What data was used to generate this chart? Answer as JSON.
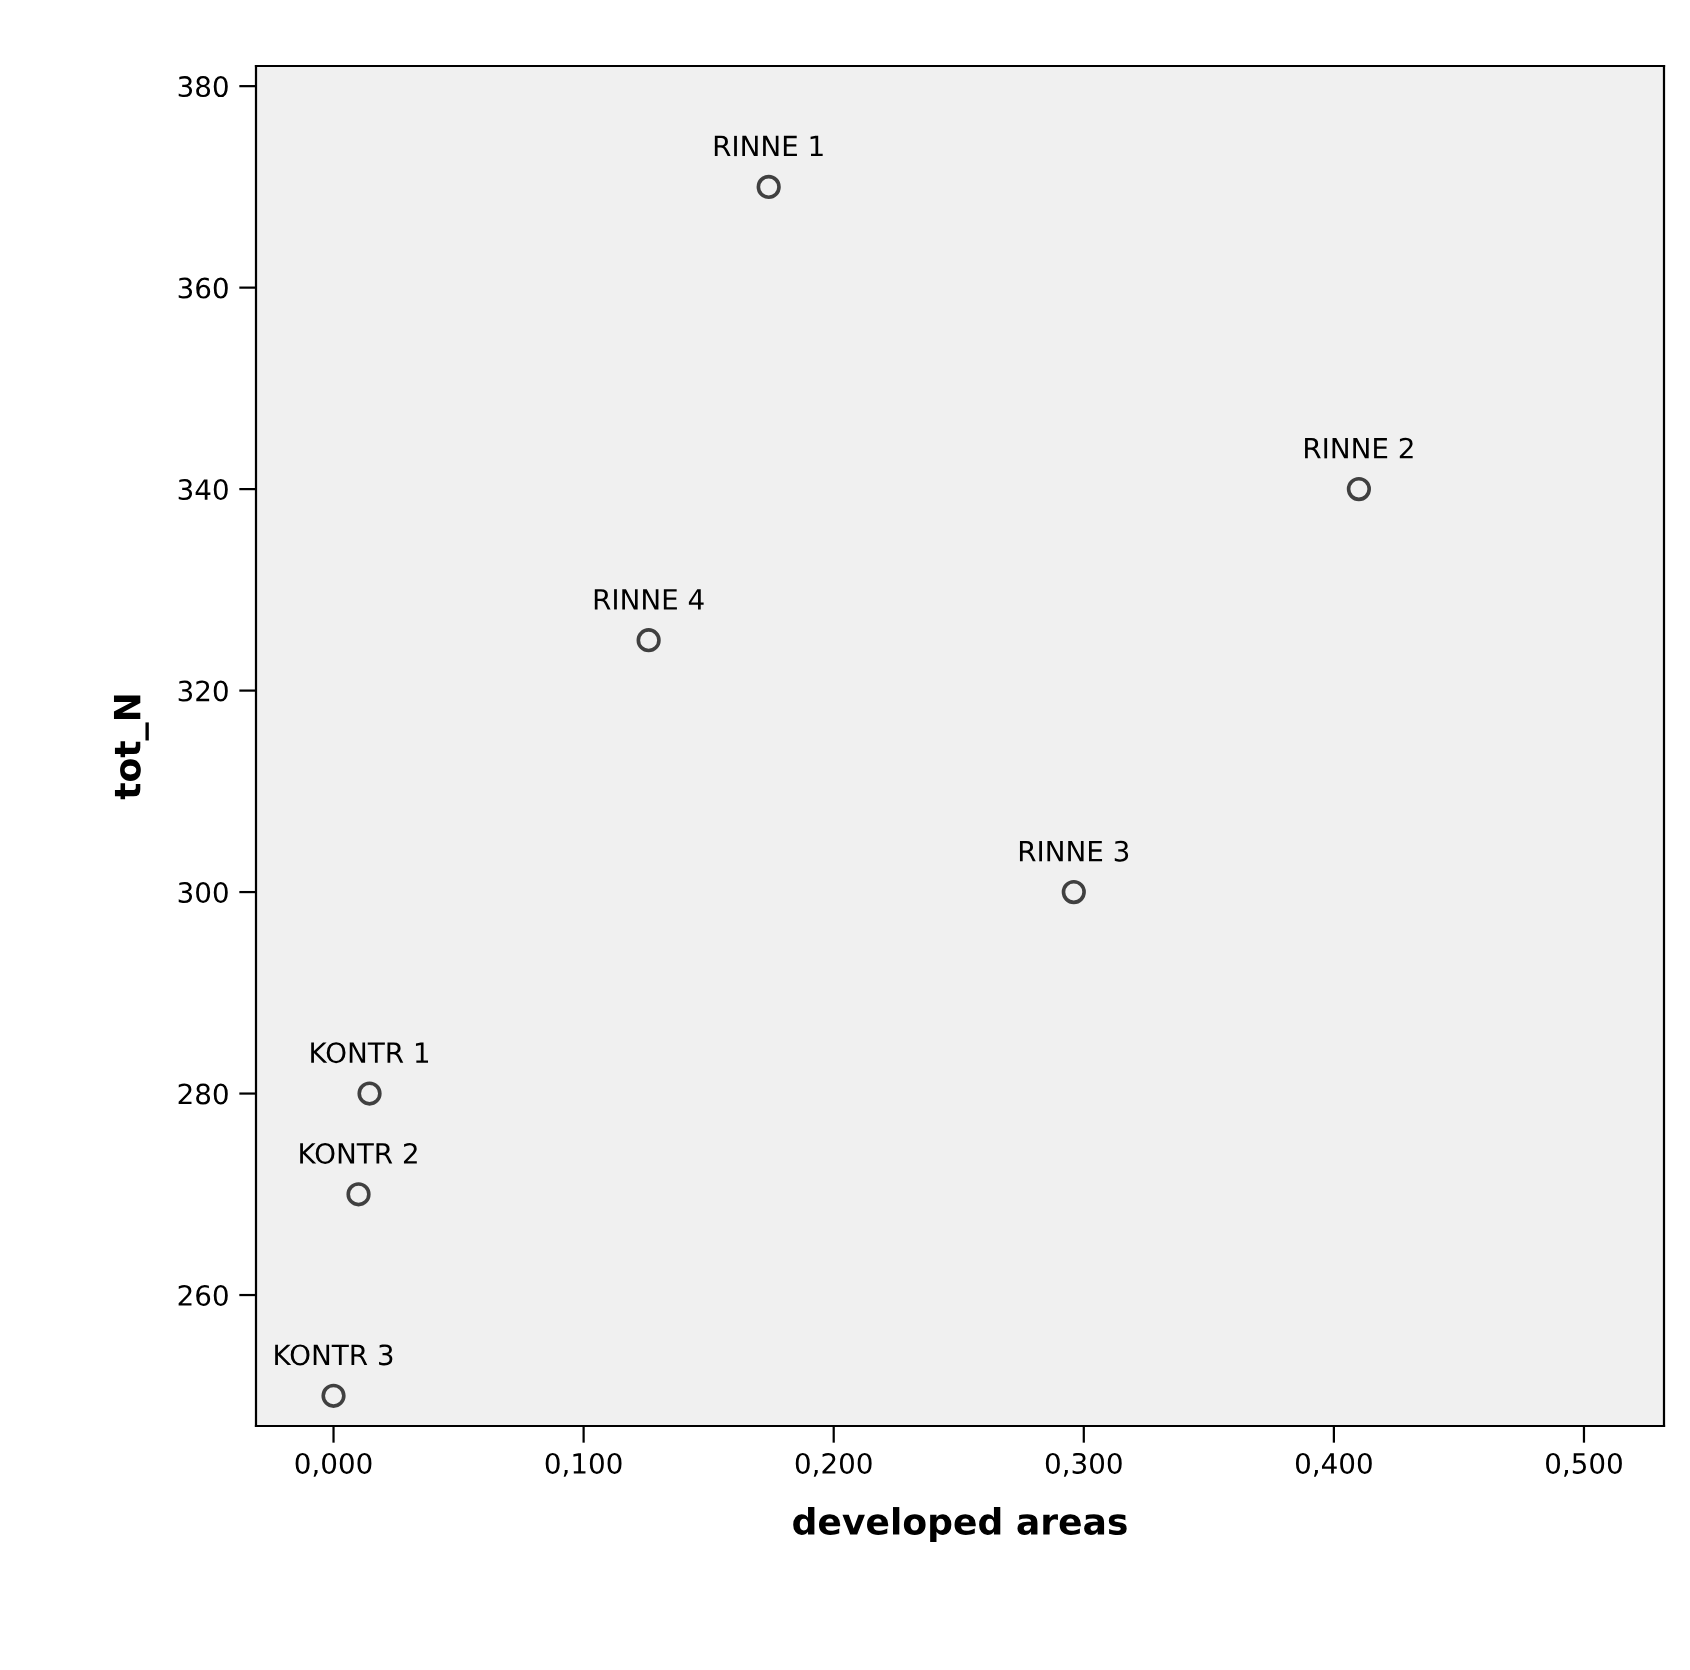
{
  "chart_data": {
    "type": "scatter",
    "xlabel": "developed areas",
    "ylabel": "tot_N",
    "series": [
      {
        "color": "#404040",
        "x": [
          0.174,
          0.41,
          0.126,
          0.296,
          0.0144,
          0.01,
          0.0
        ],
        "values": [
          370,
          340,
          325,
          300,
          280,
          270,
          250
        ]
      }
    ],
    "marker": "circle",
    "grid": false,
    "xlim": [
      -0.031,
      0.532
    ],
    "ylim": [
      247,
      382
    ],
    "xticks": [
      {
        "value": 0.0,
        "label": "0,000"
      },
      {
        "value": 0.1,
        "label": "0,100"
      },
      {
        "value": 0.2,
        "label": "0,200"
      },
      {
        "value": 0.3,
        "label": "0,300"
      },
      {
        "value": 0.4,
        "label": "0,400"
      },
      {
        "value": 0.5,
        "label": "0,500"
      }
    ],
    "yticks": [
      260,
      280,
      300,
      320,
      340,
      360,
      380
    ],
    "annotations": [
      {
        "text": "RINNE 1",
        "x": 0.174,
        "y": 370
      },
      {
        "text": "RINNE 2",
        "x": 0.41,
        "y": 340
      },
      {
        "text": "RINNE 4",
        "x": 0.126,
        "y": 325
      },
      {
        "text": "RINNE 3",
        "x": 0.296,
        "y": 300
      },
      {
        "text": "KONTR 1",
        "x": 0.0144,
        "y": 280
      },
      {
        "text": "KONTR 2",
        "x": 0.01,
        "y": 270
      },
      {
        "text": "KONTR 3",
        "x": 0.0,
        "y": 250
      }
    ]
  }
}
